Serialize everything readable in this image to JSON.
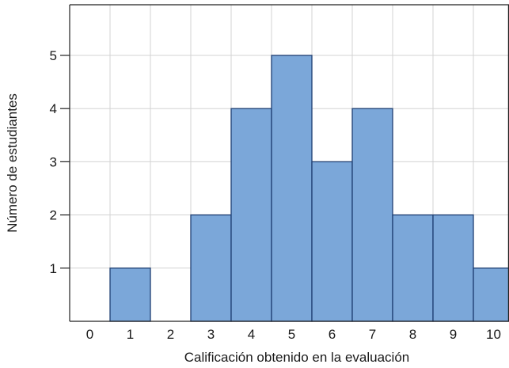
{
  "chart_data": {
    "type": "bar",
    "title": "",
    "xlabel": "Calificación obtenido en la evaluación",
    "ylabel": "Número de estudiantes",
    "categories": [
      "0",
      "1",
      "2",
      "3",
      "4",
      "5",
      "6",
      "7",
      "8",
      "9",
      "10"
    ],
    "values": [
      0,
      1,
      0,
      2,
      4,
      5,
      3,
      4,
      2,
      2,
      1
    ],
    "y_ticks": [
      "1",
      "2",
      "3",
      "4",
      "5"
    ],
    "ylim": [
      0,
      6
    ],
    "grid": true,
    "legend": "none",
    "bar_color": "#7ba7d9",
    "bar_edge_color": "#1f3f73"
  }
}
